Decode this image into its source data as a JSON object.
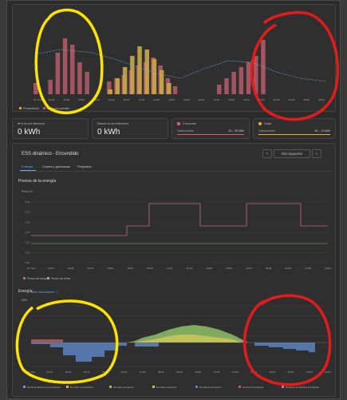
{
  "top_chart": {
    "type": "bar",
    "x_labels": [
      "22. Nov",
      "02:00",
      "03:00",
      "04:00",
      "06:00",
      "07:00",
      "08:00",
      "10:00",
      "12:00",
      "14:00",
      "16:00",
      "18:00",
      "19:00",
      "20:00",
      "22:00",
      "00:00",
      "02:00",
      "04:00",
      "06:00",
      "08:00"
    ],
    "legend": [
      "Presentación",
      "Consumo previsto"
    ],
    "colors": {
      "consumption": "#b85c6a",
      "solar": "#c9a84a",
      "line": "#7a9cc6"
    }
  },
  "tiles": [
    {
      "label": "A la red eléctrica",
      "value": "0 kWh"
    },
    {
      "label": "Desde la red eléctrica",
      "value": "0 kWh"
    },
    {
      "label": "Consumo",
      "sub": "Total previsto",
      "sub_value": "23 – 39 kWh",
      "color": "#d35f6f"
    },
    {
      "label": "Solar",
      "sub": "Total previsto",
      "sub_value": "26 – 12 kWh",
      "color": "#e3b23c"
    }
  ],
  "ess": {
    "title": "ESS dinámico - Encendido",
    "next_day": "Día siguiente",
    "prev_icon": "chevron-left-icon",
    "next_icon": "chevron-right-icon",
    "tabs": [
      "Energía",
      "Costes y ganancias",
      "Programa"
    ]
  },
  "price_chart": {
    "title": "Precios de la energía",
    "ylabel": "Precio €/",
    "y_ticks": [
      "0.30",
      "0.25",
      "0.20",
      "0.15",
      "0.10",
      "0.05",
      "0.00"
    ],
    "x_labels": [
      "22. Nov",
      "02:00",
      "04:00",
      "06:00",
      "08:00",
      "10:00",
      "12:00",
      "14:00",
      "16:00",
      "18:00",
      "20:00",
      "22:00",
      "00:00",
      "02:00",
      "04:00",
      "06:00"
    ],
    "legend": [
      "Precio de compra",
      "Precio de venta"
    ],
    "colors": {
      "buy": "#c06a86",
      "sell": "#8db26a"
    }
  },
  "energy_chart": {
    "title": "Energía",
    "link": "Más información ⓘ",
    "ylabel": "kWh",
    "x_labels": [
      "22. Nov",
      "02:00",
      "03:00",
      "04:00",
      "05:00",
      "06:00",
      "07:00",
      "08:00",
      "09:00",
      "10:00",
      "12:00",
      "14:00",
      "16:00",
      "18:00",
      "20:00",
      "22:00",
      "00:00"
    ],
    "legend": [
      "Desde la batería a la red eléctrica",
      "De solar a red eléctrica",
      "De solar a la batería",
      "De solar a consumo",
      "De batería a consumo",
      "De la red a la batería",
      "Desde la red eléctrica a la batería"
    ],
    "legend_colors": [
      "#6a9ad6",
      "#e0b24a",
      "#8fbf6a",
      "#c9c45a",
      "#5b82c0",
      "#b86060",
      "#9d86c0"
    ]
  }
}
